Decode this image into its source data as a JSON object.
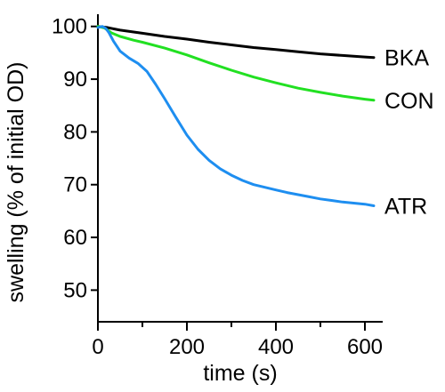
{
  "chart_data": {
    "type": "line",
    "title": "",
    "xlabel": "time (s)",
    "ylabel": "swelling (% of initial OD)",
    "xlim": [
      0,
      640
    ],
    "ylim": [
      44,
      104
    ],
    "x_ticks": [
      0,
      200,
      400,
      600
    ],
    "x_minor_ticks": [
      100,
      300,
      500
    ],
    "y_ticks": [
      50,
      60,
      70,
      80,
      90,
      100
    ],
    "grid": false,
    "legend": "none",
    "series": [
      {
        "name": "BKA",
        "color": "#000000",
        "points": [
          [
            0,
            100
          ],
          [
            20,
            99.8
          ],
          [
            50,
            99.3
          ],
          [
            100,
            98.7
          ],
          [
            150,
            98.1
          ],
          [
            200,
            97.6
          ],
          [
            250,
            97.0
          ],
          [
            300,
            96.5
          ],
          [
            350,
            96.0
          ],
          [
            400,
            95.6
          ],
          [
            450,
            95.2
          ],
          [
            500,
            94.8
          ],
          [
            550,
            94.5
          ],
          [
            600,
            94.2
          ],
          [
            620,
            94.1
          ]
        ]
      },
      {
        "name": "CON",
        "color": "#22e022",
        "points": [
          [
            0,
            100
          ],
          [
            15,
            99.7
          ],
          [
            30,
            98.8
          ],
          [
            50,
            98.1
          ],
          [
            80,
            97.4
          ],
          [
            100,
            97.0
          ],
          [
            150,
            95.9
          ],
          [
            200,
            94.6
          ],
          [
            250,
            93.1
          ],
          [
            300,
            91.7
          ],
          [
            350,
            90.4
          ],
          [
            400,
            89.3
          ],
          [
            450,
            88.3
          ],
          [
            500,
            87.5
          ],
          [
            550,
            86.8
          ],
          [
            600,
            86.2
          ],
          [
            620,
            86.0
          ]
        ]
      },
      {
        "name": "ATR",
        "color": "#1e8ef0",
        "points": [
          [
            0,
            99.8
          ],
          [
            10,
            100
          ],
          [
            18,
            99.6
          ],
          [
            25,
            98.8
          ],
          [
            35,
            97.2
          ],
          [
            50,
            95.3
          ],
          [
            70,
            94.0
          ],
          [
            90,
            93.0
          ],
          [
            110,
            91.5
          ],
          [
            130,
            89.0
          ],
          [
            150,
            86.3
          ],
          [
            175,
            82.8
          ],
          [
            200,
            79.4
          ],
          [
            225,
            76.7
          ],
          [
            250,
            74.6
          ],
          [
            275,
            73.0
          ],
          [
            300,
            71.8
          ],
          [
            325,
            70.8
          ],
          [
            350,
            70.0
          ],
          [
            375,
            69.5
          ],
          [
            400,
            69.0
          ],
          [
            425,
            68.5
          ],
          [
            450,
            68.1
          ],
          [
            475,
            67.7
          ],
          [
            500,
            67.3
          ],
          [
            525,
            67.0
          ],
          [
            550,
            66.7
          ],
          [
            575,
            66.5
          ],
          [
            600,
            66.3
          ],
          [
            620,
            66.0
          ]
        ]
      }
    ]
  }
}
